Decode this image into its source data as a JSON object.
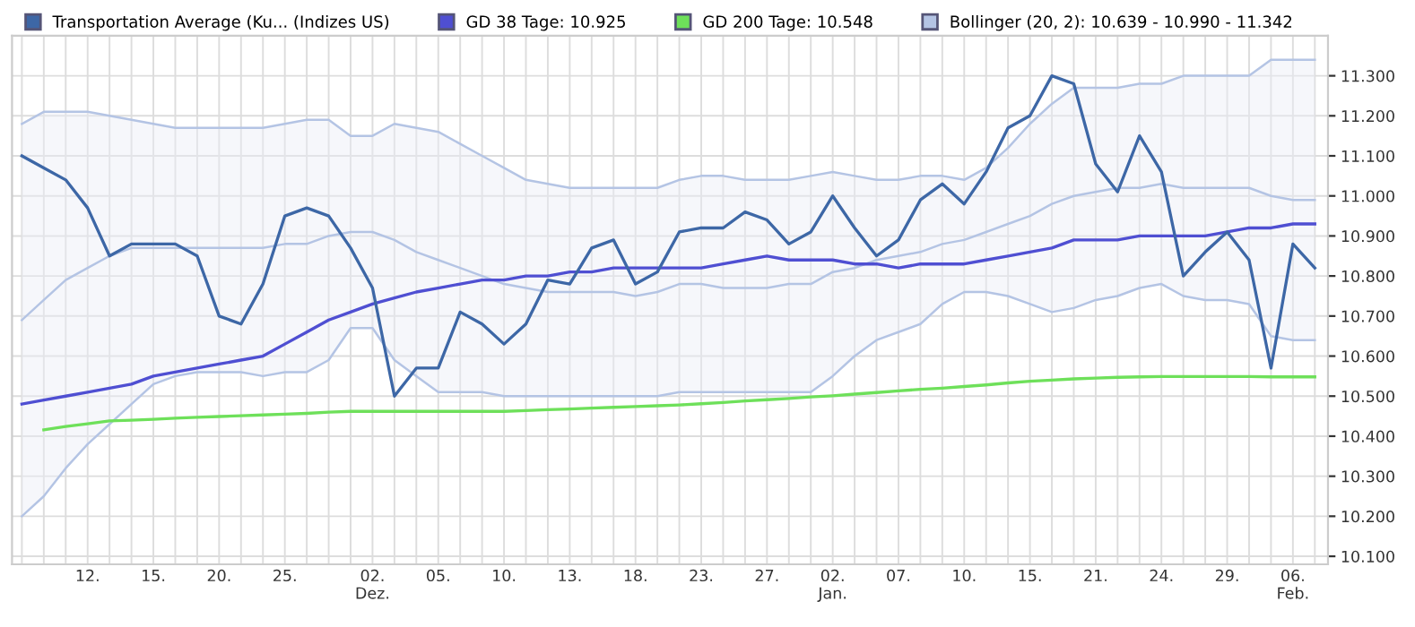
{
  "chart_data": {
    "type": "line",
    "categories": [
      null,
      null,
      null,
      "12.",
      null,
      null,
      "15.",
      null,
      null,
      "20.",
      null,
      null,
      "25.",
      null,
      null,
      null,
      "02.\nDez.",
      null,
      null,
      "05.",
      null,
      null,
      "10.",
      null,
      null,
      "13.",
      null,
      null,
      "18.",
      null,
      null,
      "23.",
      null,
      null,
      "27.",
      null,
      null,
      "02.\nJan.",
      null,
      null,
      "07.",
      null,
      null,
      "10.",
      null,
      null,
      "15.",
      null,
      null,
      "21.",
      null,
      null,
      "24.",
      null,
      null,
      "29.",
      null,
      null,
      "06.\nFeb.",
      null
    ],
    "series": [
      {
        "name": "Bollinger (20, 2): 10.639 - 10.990 - 11.342",
        "color": "#b4c4e4",
        "values": [
          10.69,
          10.74,
          10.79,
          10.82,
          10.85,
          10.87,
          10.87,
          10.87,
          10.87,
          10.87,
          10.87,
          10.87,
          10.88,
          10.88,
          10.9,
          10.91,
          10.91,
          10.89,
          10.86,
          10.84,
          10.82,
          10.8,
          10.78,
          10.77,
          10.76,
          10.76,
          10.76,
          10.76,
          10.75,
          10.76,
          10.78,
          10.78,
          10.77,
          10.77,
          10.77,
          10.78,
          10.78,
          10.81,
          10.82,
          10.84,
          10.85,
          10.86,
          10.88,
          10.89,
          10.91,
          10.93,
          10.95,
          10.98,
          11.0,
          11.01,
          11.02,
          11.02,
          11.03,
          11.02,
          11.02,
          11.02,
          11.02,
          11.0,
          10.99,
          10.99
        ],
        "lower": [
          10.2,
          10.25,
          10.32,
          10.38,
          10.43,
          10.48,
          10.53,
          10.55,
          10.56,
          10.56,
          10.56,
          10.55,
          10.56,
          10.56,
          10.59,
          10.67,
          10.67,
          10.59,
          10.55,
          10.51,
          10.51,
          10.51,
          10.5,
          10.5,
          10.5,
          10.5,
          10.5,
          10.5,
          10.5,
          10.5,
          10.51,
          10.51,
          10.51,
          10.51,
          10.51,
          10.51,
          10.51,
          10.55,
          10.6,
          10.64,
          10.66,
          10.68,
          10.73,
          10.76,
          10.76,
          10.75,
          10.73,
          10.71,
          10.72,
          10.74,
          10.75,
          10.77,
          10.78,
          10.75,
          10.74,
          10.74,
          10.73,
          10.65,
          10.64,
          10.64
        ],
        "upper": [
          11.18,
          11.21,
          11.21,
          11.21,
          11.2,
          11.19,
          11.18,
          11.17,
          11.17,
          11.17,
          11.17,
          11.17,
          11.18,
          11.19,
          11.19,
          11.15,
          11.15,
          11.18,
          11.17,
          11.16,
          11.13,
          11.1,
          11.07,
          11.04,
          11.03,
          11.02,
          11.02,
          11.02,
          11.02,
          11.02,
          11.04,
          11.05,
          11.05,
          11.04,
          11.04,
          11.04,
          11.05,
          11.06,
          11.05,
          11.04,
          11.04,
          11.05,
          11.05,
          11.04,
          11.07,
          11.12,
          11.18,
          11.23,
          11.27,
          11.27,
          11.27,
          11.28,
          11.28,
          11.3,
          11.3,
          11.3,
          11.3,
          11.34,
          11.34,
          11.34
        ]
      },
      {
        "color": "#b4c4e4",
        "values": [
          10.2,
          10.25,
          10.32,
          10.38,
          10.43,
          10.48,
          10.53,
          10.55,
          10.56,
          10.56,
          10.56,
          10.55,
          10.56,
          10.56,
          10.59,
          10.67,
          10.67,
          10.59,
          10.55,
          10.51,
          10.51,
          10.51,
          10.5,
          10.5,
          10.5,
          10.5,
          10.5,
          10.5,
          10.5,
          10.5,
          10.51,
          10.51,
          10.51,
          10.51,
          10.51,
          10.51,
          10.51,
          10.55,
          10.6,
          10.64,
          10.66,
          10.68,
          10.73,
          10.76,
          10.76,
          10.75,
          10.73,
          10.71,
          10.72,
          10.74,
          10.75,
          10.77,
          10.78,
          10.75,
          10.74,
          10.74,
          10.73,
          10.65,
          10.64,
          10.64
        ]
      },
      {
        "color": "#b4c4e4",
        "values": [
          11.18,
          11.21,
          11.21,
          11.21,
          11.2,
          11.19,
          11.18,
          11.17,
          11.17,
          11.17,
          11.17,
          11.17,
          11.18,
          11.19,
          11.19,
          11.15,
          11.15,
          11.18,
          11.17,
          11.16,
          11.13,
          11.1,
          11.07,
          11.04,
          11.03,
          11.02,
          11.02,
          11.02,
          11.02,
          11.02,
          11.04,
          11.05,
          11.05,
          11.04,
          11.04,
          11.04,
          11.05,
          11.06,
          11.05,
          11.04,
          11.04,
          11.05,
          11.05,
          11.04,
          11.07,
          11.12,
          11.18,
          11.23,
          11.27,
          11.27,
          11.27,
          11.28,
          11.28,
          11.3,
          11.3,
          11.3,
          11.3,
          11.34,
          11.34,
          11.34
        ]
      },
      {
        "name": "GD 200 Tage: 10.548",
        "color": "#6ee05a",
        "values": [
          null,
          10.416,
          10.424,
          10.431,
          10.438,
          10.44,
          10.442,
          10.445,
          10.447,
          10.449,
          10.451,
          10.453,
          10.455,
          10.457,
          10.46,
          10.462,
          10.462,
          10.462,
          10.462,
          10.462,
          10.462,
          10.462,
          10.462,
          10.464,
          10.466,
          10.468,
          10.47,
          10.472,
          10.474,
          10.476,
          10.478,
          10.481,
          10.484,
          10.488,
          10.491,
          10.494,
          10.498,
          10.501,
          10.505,
          10.509,
          10.513,
          10.517,
          10.52,
          10.524,
          10.528,
          10.533,
          10.537,
          10.54,
          10.543,
          10.545,
          10.547,
          10.548,
          10.549,
          10.549,
          10.549,
          10.549,
          10.549,
          10.548,
          10.548,
          10.548
        ]
      },
      {
        "name": "GD 38 Tage: 10.925",
        "color": "#4f4fd2",
        "values": [
          10.48,
          10.49,
          10.5,
          10.51,
          10.52,
          10.53,
          10.55,
          10.56,
          10.57,
          10.58,
          10.59,
          10.6,
          10.63,
          10.66,
          10.69,
          10.71,
          10.73,
          10.745,
          10.76,
          10.77,
          10.78,
          10.79,
          10.79,
          10.8,
          10.8,
          10.81,
          10.81,
          10.82,
          10.82,
          10.82,
          10.82,
          10.82,
          10.83,
          10.84,
          10.85,
          10.84,
          10.84,
          10.84,
          10.83,
          10.83,
          10.82,
          10.83,
          10.83,
          10.83,
          10.84,
          10.85,
          10.86,
          10.87,
          10.89,
          10.89,
          10.89,
          10.9,
          10.9,
          10.9,
          10.9,
          10.91,
          10.92,
          10.92,
          10.93,
          10.93
        ]
      },
      {
        "name": "Transportation Average (Ku... (Indizes US)",
        "color": "#3d67a6",
        "values": [
          11.1,
          11.07,
          11.04,
          10.97,
          10.85,
          10.88,
          10.88,
          10.88,
          10.85,
          10.7,
          10.68,
          10.78,
          10.95,
          10.97,
          10.95,
          10.87,
          10.77,
          10.5,
          10.57,
          10.57,
          10.71,
          10.68,
          10.63,
          10.68,
          10.79,
          10.78,
          10.87,
          10.89,
          10.78,
          10.81,
          10.91,
          10.92,
          10.92,
          10.96,
          10.94,
          10.88,
          10.91,
          11.0,
          10.92,
          10.85,
          10.89,
          10.99,
          11.03,
          10.98,
          11.06,
          11.17,
          11.2,
          11.3,
          11.28,
          11.08,
          11.01,
          11.15,
          11.06,
          10.8,
          10.86,
          10.91,
          10.84,
          10.57,
          10.88,
          10.82
        ]
      }
    ],
    "ylim": [
      10.08,
      11.4
    ],
    "yticks": [
      {
        "value": 10.1,
        "label": "10.100"
      },
      {
        "value": 10.2,
        "label": "10.200"
      },
      {
        "value": 10.3,
        "label": "10.300"
      },
      {
        "value": 10.4,
        "label": "10.400"
      },
      {
        "value": 10.5,
        "label": "10.500"
      },
      {
        "value": 10.6,
        "label": "10.600"
      },
      {
        "value": 10.7,
        "label": "10.700"
      },
      {
        "value": 10.8,
        "label": "10.800"
      },
      {
        "value": 10.9,
        "label": "10.900"
      },
      {
        "value": 11.0,
        "label": "11.000"
      },
      {
        "value": 11.1,
        "label": "11.100"
      },
      {
        "value": 11.2,
        "label": "11.200"
      },
      {
        "value": 11.3,
        "label": "11.300"
      }
    ],
    "grid": true,
    "legend": "top",
    "marker": "none",
    "line_style": "solid"
  }
}
